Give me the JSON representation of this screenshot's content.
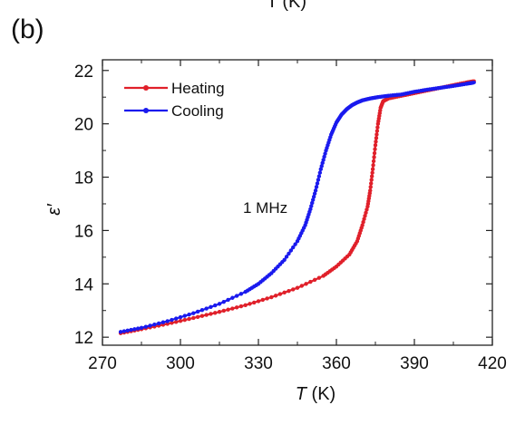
{
  "panel_label": "(b)",
  "top_fragment": "T (K)",
  "chart_data": {
    "type": "line",
    "title": "",
    "xlabel": {
      "symbol": "T",
      "unit": " (K)"
    },
    "ylabel": "ε′",
    "xlim": [
      270,
      420
    ],
    "ylim": [
      11.7,
      22.4
    ],
    "xticks": [
      270,
      300,
      330,
      360,
      390,
      420
    ],
    "yticks": [
      12,
      14,
      16,
      18,
      20,
      22
    ],
    "grid": false,
    "legend": "top-left",
    "annotation": "1 MHz",
    "series": [
      {
        "name": "Heating",
        "color": "#e0202a",
        "x": [
          277,
          285,
          295,
          305,
          315,
          325,
          335,
          345,
          355,
          360,
          365,
          368,
          370,
          372,
          373,
          374,
          375,
          376,
          377,
          378,
          380,
          385,
          390,
          395,
          400,
          405,
          410,
          413
        ],
        "y": [
          12.15,
          12.3,
          12.5,
          12.72,
          12.95,
          13.2,
          13.5,
          13.85,
          14.3,
          14.65,
          15.1,
          15.6,
          16.2,
          16.9,
          17.5,
          18.3,
          19.2,
          20.0,
          20.6,
          20.85,
          20.95,
          21.05,
          21.15,
          21.25,
          21.35,
          21.45,
          21.55,
          21.6
        ]
      },
      {
        "name": "Cooling",
        "color": "#1a1aee",
        "x": [
          277,
          285,
          295,
          305,
          315,
          325,
          330,
          335,
          340,
          345,
          348,
          350,
          352,
          354,
          356,
          358,
          360,
          362,
          364,
          366,
          368,
          370,
          373,
          376,
          380,
          385,
          390,
          395,
          400,
          405,
          410,
          413
        ],
        "y": [
          12.2,
          12.35,
          12.6,
          12.9,
          13.25,
          13.7,
          14.0,
          14.4,
          14.9,
          15.6,
          16.2,
          16.8,
          17.5,
          18.3,
          19.0,
          19.6,
          20.05,
          20.35,
          20.55,
          20.7,
          20.8,
          20.88,
          20.95,
          21.0,
          21.05,
          21.1,
          21.2,
          21.28,
          21.35,
          21.42,
          21.5,
          21.55
        ]
      }
    ]
  }
}
